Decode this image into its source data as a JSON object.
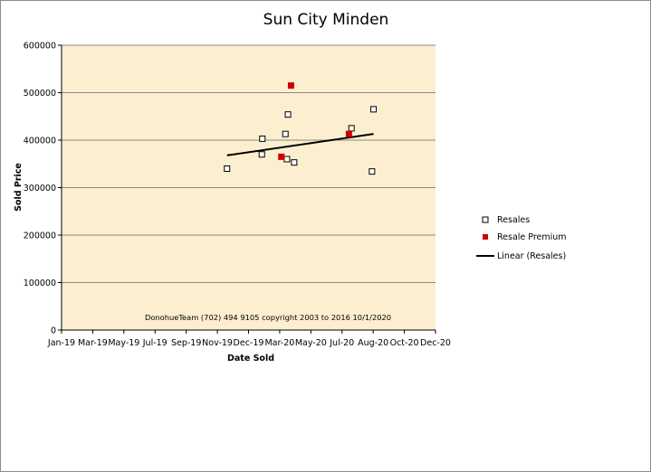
{
  "chart_data": {
    "type": "scatter",
    "title": "Sun City  Minden",
    "xlabel": "Date Sold",
    "ylabel": "Sold Price",
    "annotation": "DonohueTeam   (702) 494 9105 copyright  2003 to 2016  10/1/2020",
    "xlim": [
      "2019-01-01",
      "2020-12-31"
    ],
    "ylim": [
      0,
      600000
    ],
    "x_tick_labels": [
      "Jan-19",
      "Mar-19",
      "May-19",
      "Jul-19",
      "Sep-19",
      "Nov-19",
      "Dec-19",
      "Mar-20",
      "May-20",
      "Jul-20",
      "Aug-20",
      "Oct-20",
      "Dec-20"
    ],
    "y_ticks": [
      0,
      100000,
      200000,
      300000,
      400000,
      500000,
      600000
    ],
    "y_tick_labels": [
      "0",
      "100000",
      "200000",
      "300000",
      "400000",
      "500000",
      "600000"
    ],
    "grid": "horizontal",
    "legend_position": "right",
    "plot_background": "#fcefcf",
    "series": [
      {
        "name": "Resales",
        "marker": "hollow-square",
        "color": "#000000",
        "points": [
          {
            "x": "2019-11-20",
            "y": 340000
          },
          {
            "x": "2020-01-27",
            "y": 370000
          },
          {
            "x": "2020-01-28",
            "y": 403000
          },
          {
            "x": "2020-03-13",
            "y": 413000
          },
          {
            "x": "2020-03-16",
            "y": 360000
          },
          {
            "x": "2020-03-18",
            "y": 454000
          },
          {
            "x": "2020-03-30",
            "y": 353000
          },
          {
            "x": "2020-07-20",
            "y": 425000
          },
          {
            "x": "2020-08-29",
            "y": 334000
          },
          {
            "x": "2020-09-01",
            "y": 465000
          }
        ]
      },
      {
        "name": "Resale Premium",
        "marker": "filled-square",
        "color": "#cc0000",
        "points": [
          {
            "x": "2020-03-05",
            "y": 365000
          },
          {
            "x": "2020-03-24",
            "y": 515000
          },
          {
            "x": "2020-07-15",
            "y": 413000
          }
        ]
      }
    ],
    "trendline": {
      "name": "Linear (Resales)",
      "series": "Resales",
      "color": "#000000",
      "points": [
        {
          "x": "2019-11-20",
          "y": 368000
        },
        {
          "x": "2020-09-01",
          "y": 413000
        }
      ]
    }
  }
}
